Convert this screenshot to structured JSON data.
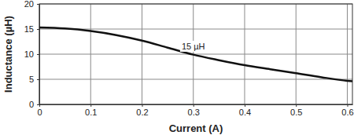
{
  "chart_data": {
    "type": "line",
    "x_label": "Current (A)",
    "y_label": "Inductance (µH)",
    "x": [
      0,
      0.05,
      0.1,
      0.15,
      0.2,
      0.25,
      0.3,
      0.35,
      0.4,
      0.45,
      0.5,
      0.55,
      0.6,
      0.61
    ],
    "values": [
      15.3,
      15.1,
      14.6,
      13.8,
      12.7,
      11.3,
      9.9,
      8.8,
      7.8,
      7.0,
      6.2,
      5.4,
      4.7,
      4.6
    ],
    "color": "#111111",
    "xlim": [
      0,
      0.61
    ],
    "xticks": [
      0,
      0.1,
      0.2,
      0.3,
      0.4,
      0.5,
      0.6
    ],
    "ylim": [
      0,
      20
    ],
    "yticks": [
      0,
      5,
      10,
      15,
      20
    ],
    "grid": true,
    "annotations": [
      {
        "text": "15 µH",
        "x": 0.3,
        "y": 11.4
      }
    ]
  }
}
